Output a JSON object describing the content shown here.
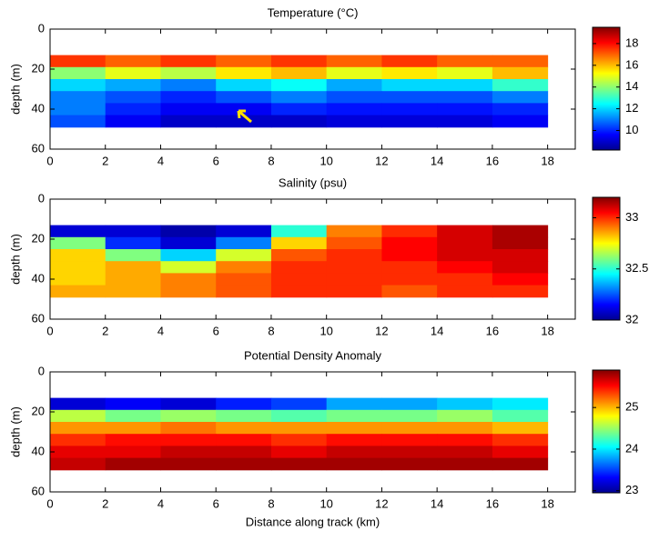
{
  "chart_data": [
    {
      "type": "heatmap",
      "title": "Temperature (°C)",
      "ylabel": "depth (m)",
      "colormap": "jet",
      "y_reversed": true,
      "x": [
        1,
        3,
        5,
        7,
        9,
        11,
        13,
        15,
        17
      ],
      "y": [
        16,
        22,
        28,
        34,
        40,
        46
      ],
      "z": [
        [
          17.5,
          17,
          17.5,
          17,
          17.5,
          17,
          17.5,
          17,
          17
        ],
        [
          14,
          15,
          14.5,
          15.5,
          16,
          15,
          15.5,
          15,
          16
        ],
        [
          12,
          11.5,
          11,
          12,
          12.5,
          11.5,
          12,
          12,
          13
        ],
        [
          11,
          10.5,
          10,
          10.5,
          11,
          10.5,
          10.5,
          10.5,
          11
        ],
        [
          11,
          10,
          9.5,
          9.5,
          10,
          9.8,
          9.8,
          9.8,
          10
        ],
        [
          10.5,
          9.5,
          9,
          9,
          9,
          9.2,
          9.2,
          9.2,
          9.5
        ]
      ],
      "xlim": [
        0,
        19
      ],
      "ylim": [
        0,
        60
      ],
      "xticks": [
        0,
        2,
        4,
        6,
        8,
        10,
        12,
        14,
        16,
        18
      ],
      "yticks": [
        0,
        20,
        40,
        60
      ],
      "clim": [
        8.2,
        19.5
      ],
      "cticks": [
        10,
        12,
        14,
        16,
        18
      ]
    },
    {
      "type": "heatmap",
      "title": "Salinity (psu)",
      "ylabel": "depth (m)",
      "colormap": "jet",
      "y_reversed": true,
      "x": [
        1,
        3,
        5,
        7,
        9,
        11,
        13,
        15,
        17
      ],
      "y": [
        16,
        22,
        28,
        34,
        40,
        46
      ],
      "z": [
        [
          32.1,
          32.1,
          32.05,
          32.1,
          32.5,
          32.9,
          33,
          33.1,
          33.15
        ],
        [
          32.6,
          32.2,
          32.1,
          32.3,
          32.8,
          32.95,
          33.05,
          33.1,
          33.15
        ],
        [
          32.8,
          32.6,
          32.4,
          32.7,
          32.95,
          33,
          33.05,
          33.1,
          33.1
        ],
        [
          32.8,
          32.85,
          32.7,
          32.9,
          33,
          33,
          33,
          33.05,
          33.1
        ],
        [
          32.8,
          32.85,
          32.9,
          32.95,
          33,
          33,
          33,
          33,
          33.05
        ],
        [
          32.85,
          32.85,
          32.9,
          32.95,
          33,
          33,
          32.95,
          33,
          33
        ]
      ],
      "xlim": [
        0,
        19
      ],
      "ylim": [
        0,
        60
      ],
      "xticks": [
        0,
        2,
        4,
        6,
        8,
        10,
        12,
        14,
        16,
        18
      ],
      "yticks": [
        0,
        20,
        40,
        60
      ],
      "clim": [
        32,
        33.2
      ],
      "cticks": [
        32,
        32.5,
        33
      ]
    },
    {
      "type": "heatmap",
      "title": "Potential Density Anomaly",
      "ylabel": "depth (m)",
      "xlabel": "Distance along track (km)",
      "colormap": "jet",
      "y_reversed": true,
      "x": [
        1,
        3,
        5,
        7,
        9,
        11,
        13,
        15,
        17
      ],
      "y": [
        16,
        22,
        28,
        34,
        40,
        46
      ],
      "z": [
        [
          23.2,
          23.3,
          23.2,
          23.4,
          23.5,
          23.8,
          23.8,
          23.9,
          24
        ],
        [
          24.6,
          24.4,
          24.5,
          24.4,
          24.3,
          24.4,
          24.4,
          24.5,
          24.3
        ],
        [
          25.1,
          25.1,
          25.2,
          25.1,
          25.1,
          25.1,
          25.1,
          25.1,
          25
        ],
        [
          25.4,
          25.5,
          25.5,
          25.5,
          25.4,
          25.5,
          25.5,
          25.5,
          25.4
        ],
        [
          25.6,
          25.6,
          25.7,
          25.7,
          25.6,
          25.7,
          25.7,
          25.7,
          25.6
        ],
        [
          25.7,
          25.8,
          25.8,
          25.8,
          25.8,
          25.8,
          25.8,
          25.8,
          25.8
        ]
      ],
      "xlim": [
        0,
        19
      ],
      "ylim": [
        0,
        60
      ],
      "xticks": [
        0,
        2,
        4,
        6,
        8,
        10,
        12,
        14,
        16,
        18
      ],
      "yticks": [
        0,
        20,
        40,
        60
      ],
      "clim": [
        22.95,
        25.9
      ],
      "cticks": [
        23,
        24,
        25
      ]
    }
  ]
}
